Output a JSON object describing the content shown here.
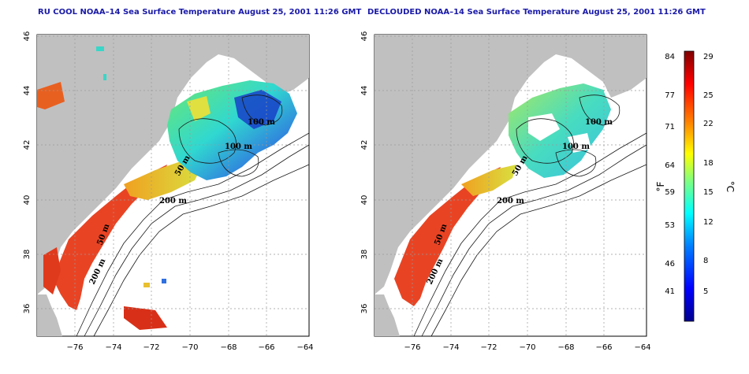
{
  "panels": [
    {
      "title": "RU COOL NOAA–14 Sea Surface Temperature August 25, 2001 11:26 GMT",
      "depth_labels": [
        "100 m",
        "100 m",
        "50 m",
        "200 m",
        "50 m",
        "200 m"
      ]
    },
    {
      "title": "DECLOUDED NOAA–14 Sea Surface Temperature August 25, 2001 11:26 GMT",
      "depth_labels": [
        "100 m",
        "100 m",
        "50 m",
        "200 m",
        "50 m",
        "200 m"
      ]
    }
  ],
  "axes": {
    "lon_ticks": [
      "−76",
      "−74",
      "−72",
      "−70",
      "−68",
      "−66",
      "−64"
    ],
    "lat_ticks": [
      "46",
      "44",
      "42",
      "40",
      "38",
      "36"
    ]
  },
  "colorbar": {
    "f_ticks": [
      "84",
      "77",
      "71",
      "64",
      "59",
      "53",
      "46",
      "41"
    ],
    "c_ticks": [
      "29",
      "25",
      "22",
      "18",
      "15",
      "12",
      "8",
      "5"
    ],
    "f_label": "°F",
    "c_label": "°C",
    "colors": [
      "#00008f",
      "#0000ff",
      "#0080ff",
      "#00ffff",
      "#80ff80",
      "#ffff00",
      "#ff8000",
      "#ff0000",
      "#800000"
    ]
  },
  "colors": {
    "land": "#c0c0c0",
    "ocean": "#ffffff",
    "title": "#1a1aa8",
    "warm": "#e83a1e",
    "cool": "#3ad6c8"
  }
}
